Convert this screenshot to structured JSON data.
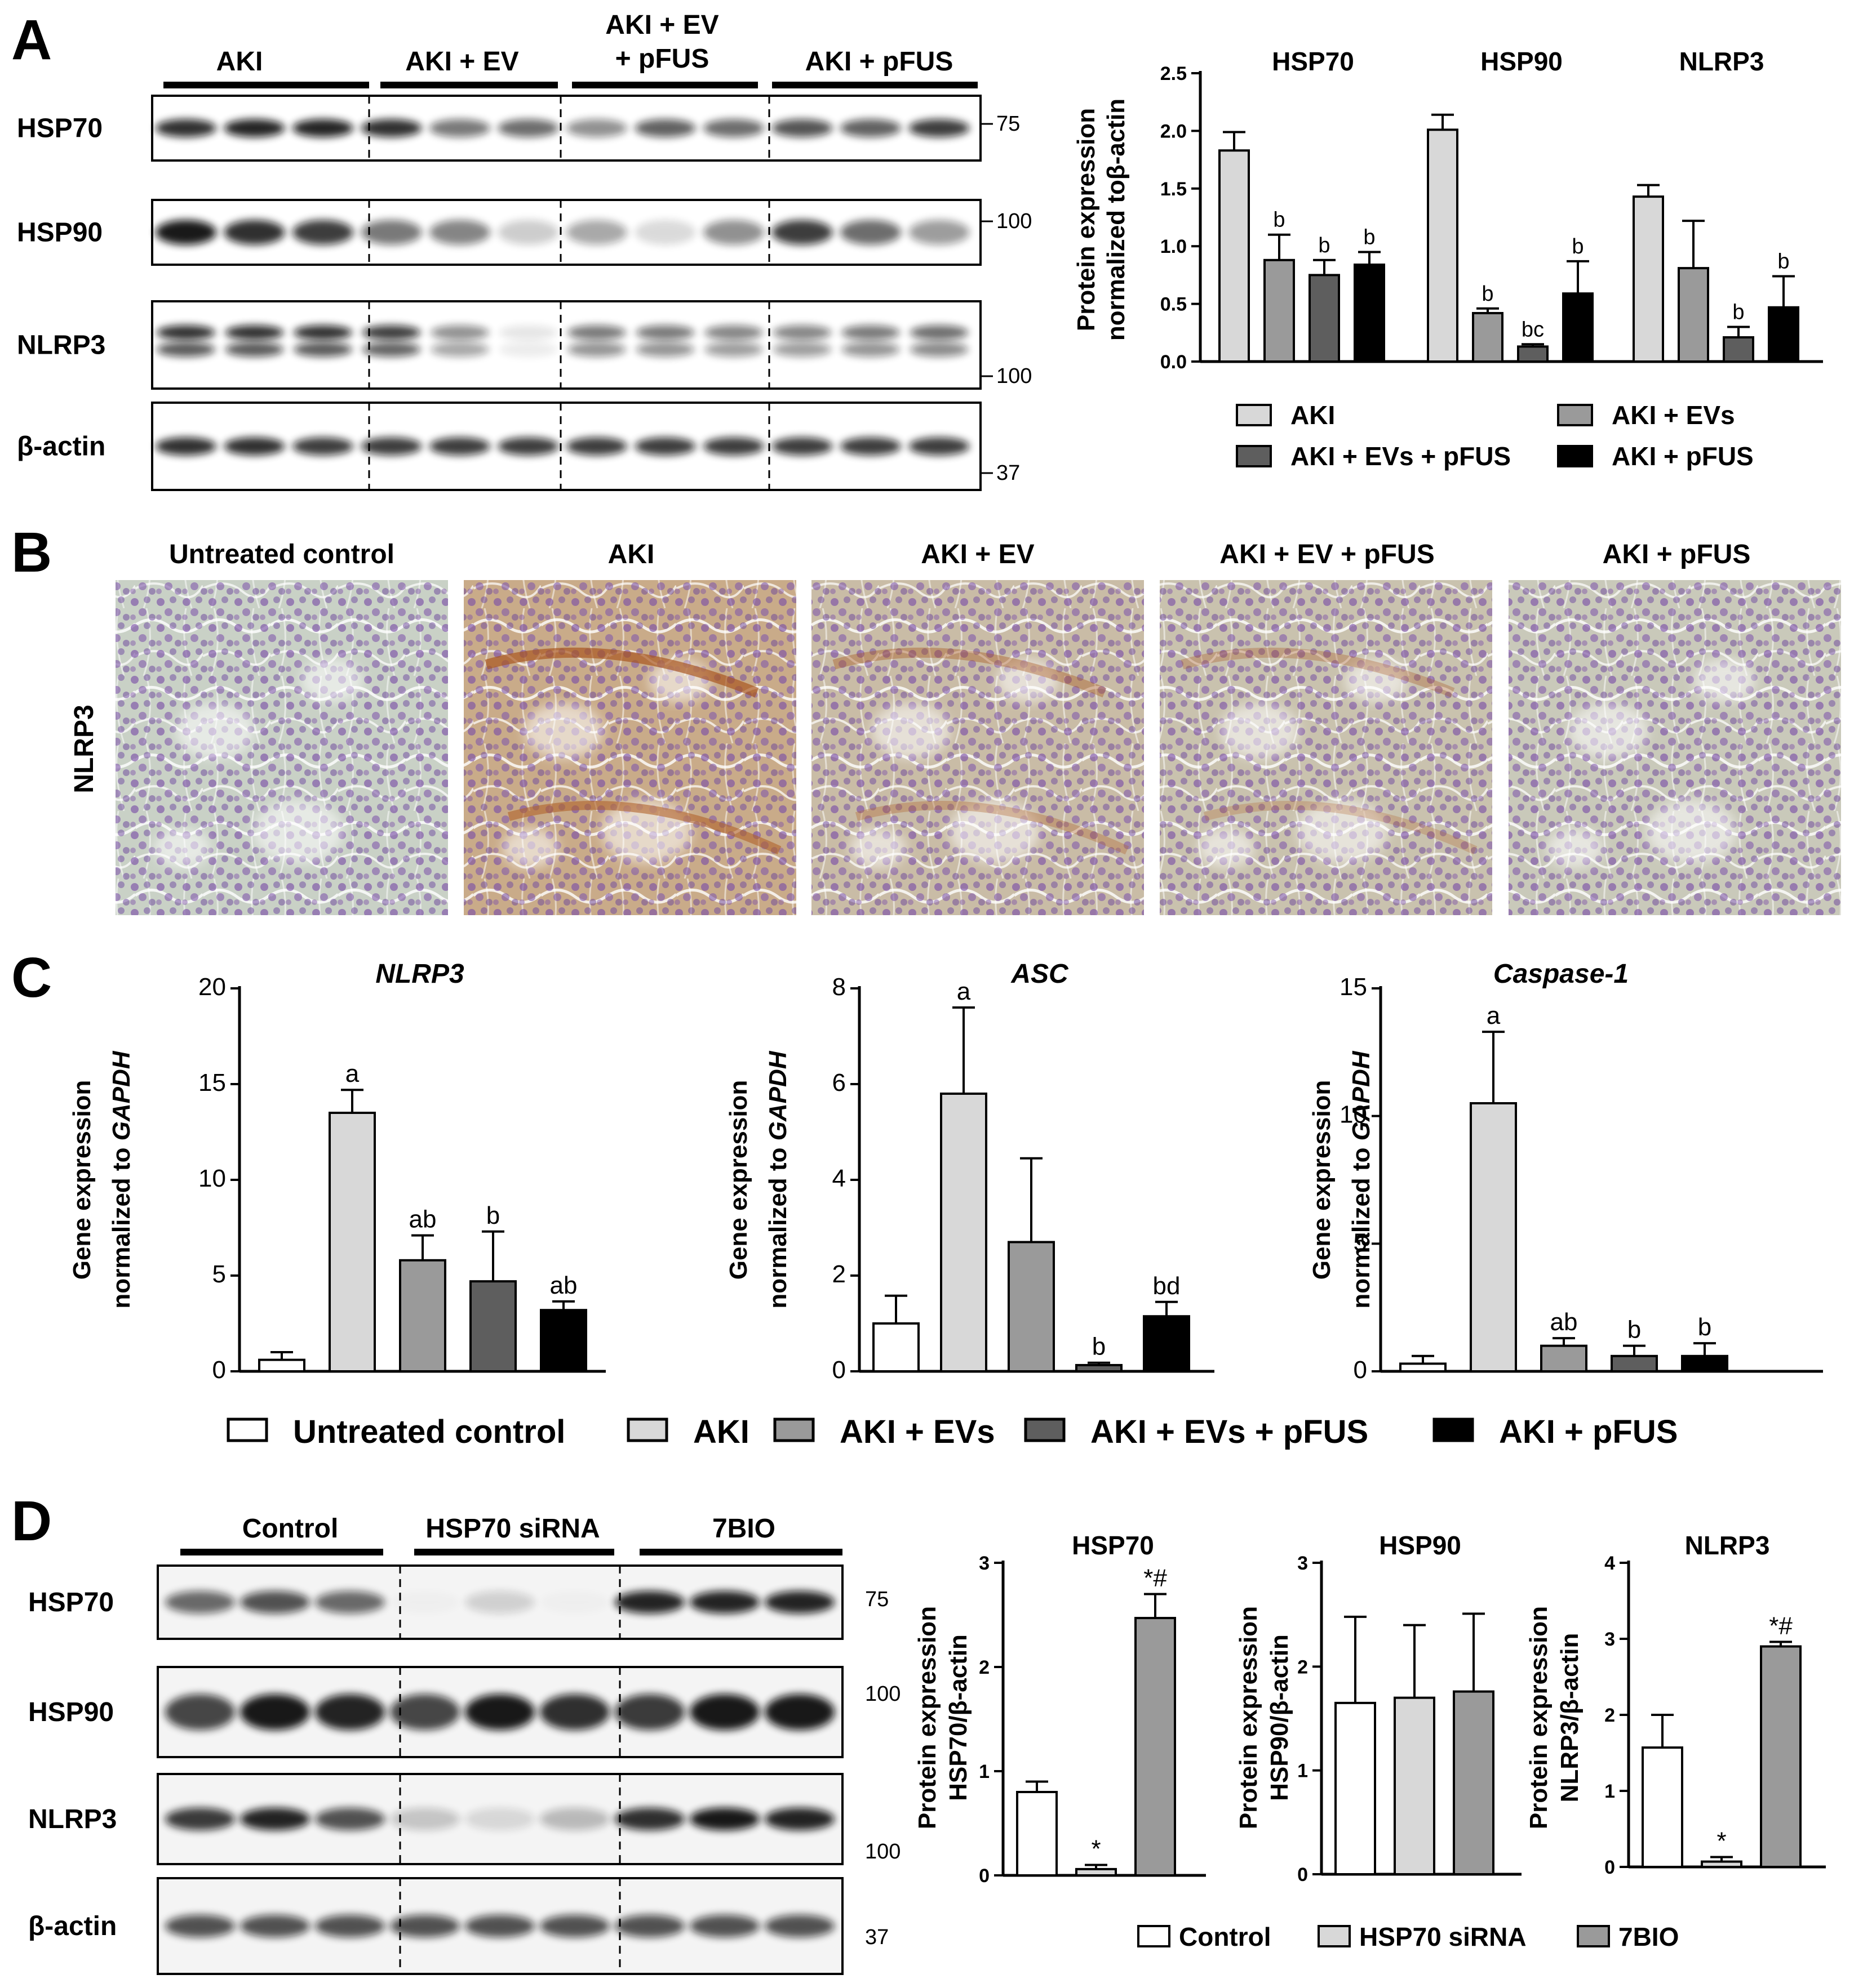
{
  "panelA": {
    "letter": "A",
    "blot_groups": [
      "AKI",
      "AKI + EV",
      "AKI + EV\n+ pFUS",
      "AKI + pFUS"
    ],
    "blot_rows": [
      "HSP70",
      "HSP90",
      "NLRP3",
      "β-actin"
    ],
    "mw_markers": [
      "75",
      "100",
      "100",
      "37"
    ],
    "chart": {
      "ylabel_line1": "Protein expression",
      "ylabel_line2": "normalized toβ-actin",
      "ylim": [
        0,
        2.5
      ],
      "yticks": [
        "0.0",
        "0.5",
        "1.0",
        "1.5",
        "2.0",
        "2.5"
      ],
      "groups": [
        "HSP70",
        "HSP90",
        "NLRP3"
      ],
      "legend": [
        "AKI",
        "AKI + EVs",
        "AKI + EVs + pFUS",
        "AKI + pFUS"
      ],
      "colors": [
        "#d8d8d8",
        "#9a9a9a",
        "#5e5e5e",
        "#000000"
      ]
    }
  },
  "chart_data": [
    {
      "type": "bar",
      "panel": "A",
      "title": "",
      "xlabel": "",
      "ylabel": "Protein expression normalized toβ-actin",
      "ylim": [
        0,
        2.5
      ],
      "categories": [
        "HSP70",
        "HSP90",
        "NLRP3"
      ],
      "series": [
        {
          "name": "AKI",
          "values": [
            1.83,
            2.01,
            1.43
          ],
          "errors": [
            0.16,
            0.13,
            0.1
          ],
          "labels": [
            "",
            "",
            ""
          ]
        },
        {
          "name": "AKI + EVs",
          "values": [
            0.88,
            0.42,
            0.81
          ],
          "errors": [
            0.22,
            0.04,
            0.41
          ],
          "labels": [
            "b",
            "b",
            ""
          ]
        },
        {
          "name": "AKI + EVs + pFUS",
          "values": [
            0.75,
            0.13,
            0.21
          ],
          "errors": [
            0.13,
            0.02,
            0.09
          ],
          "labels": [
            "b",
            "bc",
            "b"
          ]
        },
        {
          "name": "AKI + pFUS",
          "values": [
            0.84,
            0.59,
            0.47
          ],
          "errors": [
            0.11,
            0.28,
            0.27
          ],
          "labels": [
            "b",
            "b",
            "b"
          ]
        }
      ]
    },
    {
      "type": "bar",
      "panel": "C",
      "title": "NLRP3",
      "xlabel": "",
      "ylabel": "Gene expression normalized to GAPDH",
      "ylim": [
        0,
        20
      ],
      "categories": [
        "Untreated control",
        "AKI",
        "AKI + EVs",
        "AKI + EVs + pFUS",
        "AKI + pFUS"
      ],
      "values": [
        0.6,
        13.5,
        5.8,
        4.7,
        3.2
      ],
      "errors": [
        0.4,
        1.2,
        1.3,
        2.6,
        0.45
      ],
      "labels": [
        "",
        "a",
        "ab",
        "b",
        "ab"
      ]
    },
    {
      "type": "bar",
      "panel": "C",
      "title": "ASC",
      "xlabel": "",
      "ylabel": "Gene expression normalized to GAPDH",
      "ylim": [
        0,
        8
      ],
      "categories": [
        "Untreated control",
        "AKI",
        "AKI + EVs",
        "AKI + EVs + pFUS",
        "AKI + pFUS"
      ],
      "values": [
        1.0,
        5.8,
        2.7,
        0.13,
        1.15
      ],
      "errors": [
        0.58,
        1.8,
        1.75,
        0.05,
        0.3
      ],
      "labels": [
        "",
        "a",
        "",
        "b",
        "bd"
      ]
    },
    {
      "type": "bar",
      "panel": "C",
      "title": "Caspase-1",
      "xlabel": "",
      "ylabel": "Gene expression normalized to GAPDH",
      "ylim": [
        0,
        15
      ],
      "categories": [
        "Untreated control",
        "AKI",
        "AKI + EVs",
        "AKI + EVs + pFUS",
        "AKI + pFUS"
      ],
      "values": [
        0.3,
        10.5,
        1.0,
        0.6,
        0.6
      ],
      "errors": [
        0.3,
        2.8,
        0.3,
        0.4,
        0.5
      ],
      "labels": [
        "",
        "a",
        "ab",
        "b",
        "b"
      ]
    },
    {
      "type": "bar",
      "panel": "D",
      "title": "HSP70",
      "xlabel": "",
      "ylabel": "Protein expression HSP70/β-actin",
      "ylim": [
        0,
        3
      ],
      "categories": [
        "Control",
        "HSP70 siRNA",
        "7BIO"
      ],
      "values": [
        0.8,
        0.06,
        2.47
      ],
      "errors": [
        0.1,
        0.04,
        0.23
      ],
      "labels": [
        "",
        "*",
        "*#"
      ]
    },
    {
      "type": "bar",
      "panel": "D",
      "title": "HSP90",
      "xlabel": "",
      "ylabel": "Protein expression HSP90/β-actin",
      "ylim": [
        0,
        3
      ],
      "categories": [
        "Control",
        "HSP70 siRNA",
        "7BIO"
      ],
      "values": [
        1.65,
        1.7,
        1.76
      ],
      "errors": [
        0.83,
        0.7,
        0.75
      ],
      "labels": [
        "",
        "",
        ""
      ]
    },
    {
      "type": "bar",
      "panel": "D",
      "title": "NLRP3",
      "xlabel": "",
      "ylabel": "Protein expression NLRP3/β-actin",
      "ylim": [
        0,
        4
      ],
      "categories": [
        "Control",
        "HSP70 siRNA",
        "7BIO"
      ],
      "values": [
        1.57,
        0.07,
        2.9
      ],
      "errors": [
        0.43,
        0.06,
        0.06
      ],
      "labels": [
        "",
        "*",
        "*#"
      ]
    }
  ],
  "panelB": {
    "letter": "B",
    "row_label": "NLRP3",
    "columns": [
      "Untreated control",
      "AKI",
      "AKI + EV",
      "AKI + EV + pFUS",
      "AKI + pFUS"
    ],
    "stain_levels": [
      0.1,
      0.85,
      0.5,
      0.4,
      0.25
    ]
  },
  "panelC": {
    "letter": "C",
    "ylabel_line1": "Gene expression",
    "ylabel_line2_prefix": "normalized to ",
    "ylabel_line2_italic": "GAPDH",
    "titles": [
      "NLRP3",
      "ASC",
      "Caspase-1"
    ],
    "yticks": [
      [
        "0",
        "5",
        "10",
        "15",
        "20"
      ],
      [
        "0",
        "2",
        "4",
        "6",
        "8"
      ],
      [
        "0",
        "5",
        "10",
        "15"
      ]
    ],
    "legend": [
      "Untreated control",
      "AKI",
      "AKI + EVs",
      "AKI + EVs + pFUS",
      "AKI + pFUS"
    ],
    "colors": [
      "#ffffff",
      "#d8d8d8",
      "#9a9a9a",
      "#5e5e5e",
      "#000000"
    ]
  },
  "panelD": {
    "letter": "D",
    "blot_groups": [
      "Control",
      "HSP70 siRNA",
      "7BIO"
    ],
    "blot_rows": [
      "HSP70",
      "HSP90",
      "NLRP3",
      "β-actin"
    ],
    "mw_markers": [
      "75",
      "100",
      "100",
      "37"
    ],
    "titles": [
      "HSP70",
      "HSP90",
      "NLRP3"
    ],
    "ylabel_line1": "Protein expression",
    "ylabel_line2": [
      "HSP70/β-actin",
      "HSP90/β-actin",
      "NLRP3/β-actin"
    ],
    "yticks": [
      [
        "0",
        "1",
        "2",
        "3"
      ],
      [
        "0",
        "1",
        "2",
        "3"
      ],
      [
        "0",
        "1",
        "2",
        "3",
        "4"
      ]
    ],
    "legend": [
      "Control",
      "HSP70 siRNA",
      "7BIO"
    ],
    "colors": [
      "#ffffff",
      "#d8d8d8",
      "#9a9a9a"
    ]
  }
}
